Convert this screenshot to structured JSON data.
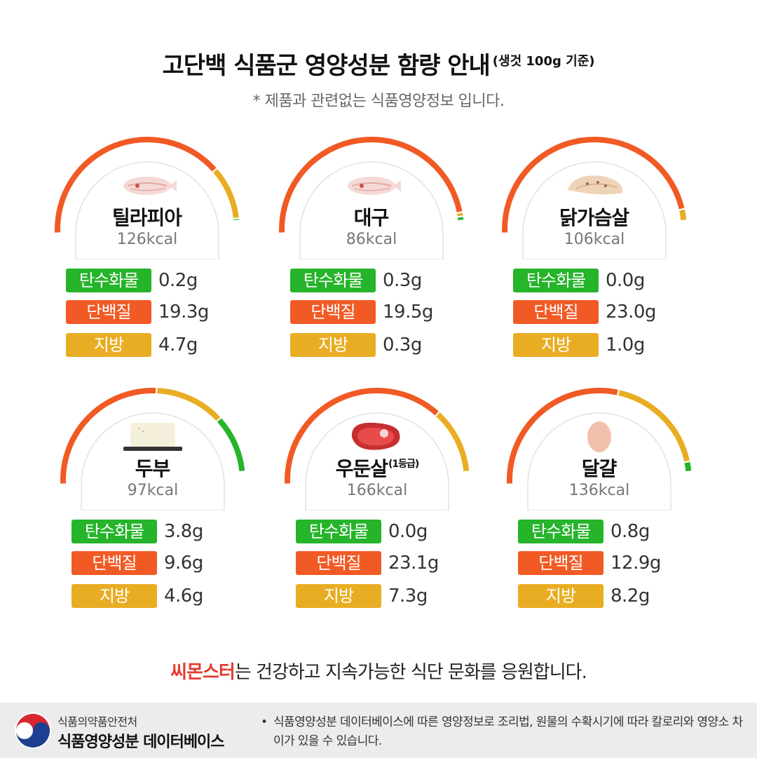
{
  "header": {
    "title": "고단백 식품군 영양성분 함량 안내",
    "title_sub": "(생것 100g 기준)",
    "subtitle": "* 제품과 관련없는 식품영양정보 입니다."
  },
  "labels": {
    "carb": "탄수화물",
    "protein": "단백질",
    "fat": "지방"
  },
  "colors": {
    "carb": "#25b42a",
    "protein": "#f15a24",
    "fat": "#e9ad23",
    "brand": "#e63a2e"
  },
  "foods": [
    {
      "name": "틸라피아",
      "name_sup": "",
      "kcal": "126kcal",
      "carb": "0.2g",
      "protein": "19.3g",
      "fat": "4.7g",
      "icon": "fish-fillet-icon",
      "gauge": {
        "carb_g": 0.2,
        "protein_g": 19.3,
        "fat_g": 4.7
      }
    },
    {
      "name": "대구",
      "name_sup": "",
      "kcal": "86kcal",
      "carb": "0.3g",
      "protein": "19.5g",
      "fat": "0.3g",
      "icon": "fish-fillet-icon",
      "gauge": {
        "carb_g": 0.3,
        "protein_g": 19.5,
        "fat_g": 0.3
      }
    },
    {
      "name": "닭가슴살",
      "name_sup": "",
      "kcal": "106kcal",
      "carb": "0.0g",
      "protein": "23.0g",
      "fat": "1.0g",
      "icon": "chicken-breast-icon",
      "gauge": {
        "carb_g": 0.0,
        "protein_g": 23.0,
        "fat_g": 1.0
      }
    },
    {
      "name": "두부",
      "name_sup": "",
      "kcal": "97kcal",
      "carb": "3.8g",
      "protein": "9.6g",
      "fat": "4.6g",
      "icon": "tofu-icon",
      "gauge": {
        "carb_g": 3.8,
        "protein_g": 9.6,
        "fat_g": 4.6
      }
    },
    {
      "name": "우둔살",
      "name_sup": "(1등급)",
      "kcal": "166kcal",
      "carb": "0.0g",
      "protein": "23.1g",
      "fat": "7.3g",
      "icon": "steak-icon",
      "gauge": {
        "carb_g": 0.0,
        "protein_g": 23.1,
        "fat_g": 7.3
      }
    },
    {
      "name": "달걀",
      "name_sup": "",
      "kcal": "136kcal",
      "carb": "0.8g",
      "protein": "12.9g",
      "fat": "8.2g",
      "icon": "egg-icon",
      "gauge": {
        "carb_g": 0.8,
        "protein_g": 12.9,
        "fat_g": 8.2
      }
    }
  ],
  "footer": {
    "slogan_brand": "씨몬스터",
    "slogan_rest": "는 건강하고 지속가능한 식단 문화를 응원합니다.",
    "org": "식품의약품안전처",
    "db_name": "식품영양성분 데이터베이스",
    "note_bullet": "•",
    "note": "식품영양성분 데이터베이스에 따른 영양정보로 조리법, 원물의 수확시기에 따라 칼로리와 영양소 차이가 있을 수 있습니다.",
    "logo_icon": "mfds-taegeuk-logo-icon"
  }
}
